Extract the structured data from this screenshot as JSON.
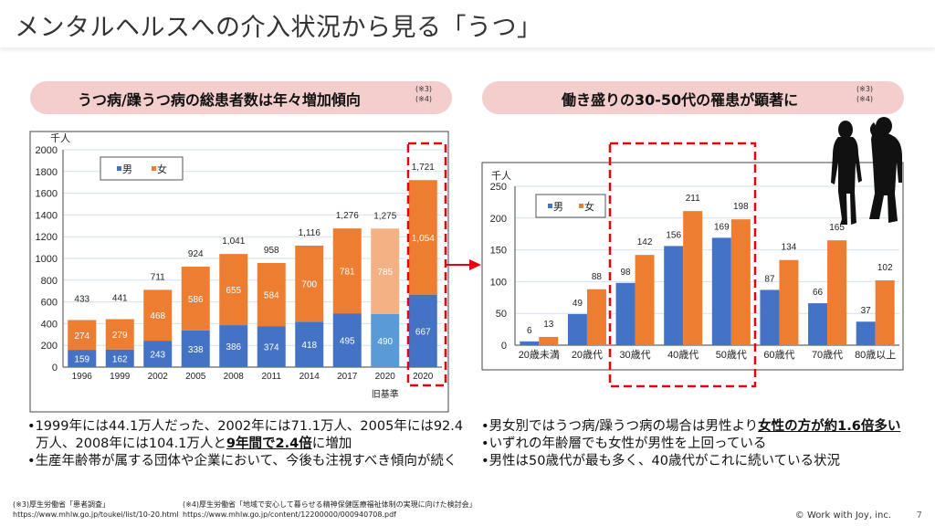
{
  "title": "メンタルヘルスへの介入状況から見る「うつ」",
  "left_banner": {
    "text": "うつ病/躁うつ病の総患者数は年々増加傾向",
    "notes": [
      "(※3)",
      "(※4)"
    ]
  },
  "right_banner": {
    "text": "働き盛りの30-50代の罹患が顕著に",
    "notes": [
      "(※3)",
      "(※4)"
    ]
  },
  "colors": {
    "male": "#4472c4",
    "female": "#ed7d31",
    "male_light": "#5b9bd5",
    "female_light": "#f4b183",
    "highlight": "#e8000b",
    "banner": "#f4cdcd"
  },
  "chart_data": [
    {
      "type": "bar",
      "stacked": true,
      "title": "",
      "unit_label": "千人",
      "xlabel": "",
      "ylabel": "千人",
      "ylim": [
        0,
        2000
      ],
      "yticks": [
        0,
        200,
        400,
        600,
        800,
        1000,
        1200,
        1400,
        1600,
        1800,
        2000
      ],
      "grid": true,
      "legend": {
        "position": "top-left",
        "entries": [
          "男",
          "女"
        ]
      },
      "categories": [
        "1996",
        "1999",
        "2002",
        "2005",
        "2008",
        "2011",
        "2014",
        "2017",
        "2020",
        "2020"
      ],
      "category_sublabels": [
        "",
        "",
        "",
        "",
        "",
        "",
        "",
        "",
        "旧基準",
        ""
      ],
      "series": [
        {
          "name": "男",
          "values": [
            159,
            162,
            243,
            338,
            386,
            374,
            418,
            495,
            490,
            667
          ]
        },
        {
          "name": "女",
          "values": [
            274,
            279,
            468,
            586,
            655,
            584,
            700,
            781,
            785,
            1054
          ]
        }
      ],
      "totals": [
        "433",
        "441",
        "711",
        "924",
        "1,041",
        "958",
        "1,116",
        "1,276",
        "1,275",
        "1,721"
      ],
      "value_labels_male": [
        "159",
        "162",
        "243",
        "338",
        "386",
        "374",
        "418",
        "495",
        "490",
        "667"
      ],
      "value_labels_female": [
        "274",
        "279",
        "468",
        "586",
        "655",
        "584",
        "700",
        "781",
        "785",
        "1,054"
      ],
      "light_categories": [
        8
      ],
      "highlighted_categories": [
        9
      ]
    },
    {
      "type": "bar",
      "stacked": false,
      "title": "",
      "unit_label": "千人",
      "xlabel": "",
      "ylabel": "千人",
      "ylim": [
        0,
        250
      ],
      "yticks": [
        0,
        50,
        100,
        150,
        200,
        250
      ],
      "grid": true,
      "legend": {
        "position": "top-left",
        "entries": [
          "男",
          "女"
        ]
      },
      "categories": [
        "20歳未満",
        "20歳代",
        "30歳代",
        "40歳代",
        "50歳代",
        "60歳代",
        "70歳代",
        "80歳以上"
      ],
      "series": [
        {
          "name": "男",
          "values": [
            6,
            49,
            98,
            156,
            169,
            87,
            66,
            37
          ]
        },
        {
          "name": "女",
          "values": [
            13,
            88,
            142,
            211,
            198,
            134,
            165,
            102
          ]
        }
      ],
      "highlighted_categories": [
        2,
        3,
        4
      ]
    }
  ],
  "left_bullets": [
    {
      "pre": "1999年には44.1万人だった、2002年には71.1万人、2005年には92.4万人、2008年には104.1万人と",
      "em": "9年間で2.4倍",
      "post": "に増加"
    },
    {
      "pre": "生産年齢帯が属する団体や企業において、今後も注視すべき傾向が続く",
      "em": "",
      "post": ""
    }
  ],
  "right_bullets": [
    {
      "pre": "男女別ではうつ病/躁うつ病の場合は男性より",
      "em": "女性の方が約1.6倍多い",
      "post": ""
    },
    {
      "pre": "いずれの年齢層でも女性が男性を上回っている",
      "em": "",
      "post": ""
    },
    {
      "pre": "男性は50歳代が最も多く、40歳代がこれに続いている状況",
      "em": "",
      "post": ""
    }
  ],
  "sources": [
    {
      "label": "(※3)厚生労働省「患者調査」",
      "url": "https://www.mhlw.go.jp/toukei/list/10-20.html"
    },
    {
      "label": "(※4)厚生労働省「地域で安心して暮らせる精神保健医療福祉体制の実現に向けた検討会」",
      "url": "https://www.mhlw.go.jp/content/12200000/000940708.pdf"
    }
  ],
  "footer": {
    "copyright": "© Work with Joy, inc.",
    "page": "7"
  }
}
